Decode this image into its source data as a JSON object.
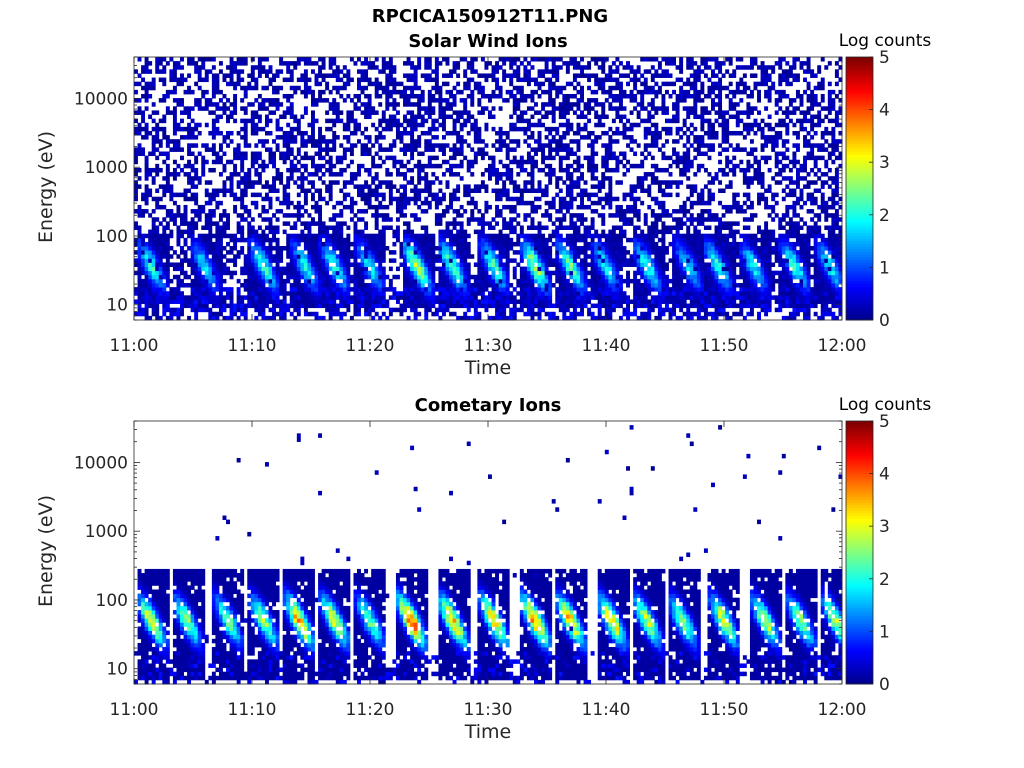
{
  "figure_title": "RPCICA150912T11.PNG",
  "colors": {
    "colormap": [
      "#00008f",
      "#0000ff",
      "#0080ff",
      "#00ffff",
      "#80ff80",
      "#ffff00",
      "#ff8000",
      "#ff0000",
      "#800000"
    ],
    "axis": "#262626"
  },
  "chart_data": [
    {
      "type": "heatmap",
      "title": "Solar Wind Ions",
      "xlabel": "Time",
      "ylabel": "Energy (eV)",
      "x_ticks": [
        "11:00",
        "11:10",
        "11:20",
        "11:30",
        "11:40",
        "11:50",
        "12:00"
      ],
      "xlim": [
        "11:00",
        "12:00"
      ],
      "y_scale": "log",
      "y_ticks": [
        10,
        100,
        1000,
        10000
      ],
      "y_tick_labels": [
        "10",
        "100",
        "1000",
        "10000"
      ],
      "ylim": [
        6,
        40000
      ],
      "colorbar": {
        "label": "Log counts",
        "range": [
          0,
          5
        ],
        "ticks": [
          "0",
          "1",
          "2",
          "3",
          "4",
          "5"
        ]
      },
      "background_level": 0.3,
      "bursts_minutes": [
        1.5,
        6,
        11,
        14.5,
        17,
        20,
        24,
        27,
        30.5,
        34,
        37,
        40,
        43.5,
        47,
        49.5,
        52.5,
        56,
        59
      ],
      "burst_peak_log_counts": [
        2.2,
        1.8,
        2.3,
        2.0,
        2.2,
        2.0,
        3.0,
        2.5,
        2.3,
        3.0,
        2.5,
        2.0,
        2.2,
        1.8,
        2.2,
        2.0,
        2.2,
        2.0
      ],
      "burst_energy_ev": [
        20,
        60
      ]
    },
    {
      "type": "heatmap",
      "title": "Cometary Ions",
      "xlabel": "Time",
      "ylabel": "Energy (eV)",
      "x_ticks": [
        "11:00",
        "11:10",
        "11:20",
        "11:30",
        "11:40",
        "11:50",
        "12:00"
      ],
      "xlim": [
        "11:00",
        "12:00"
      ],
      "y_scale": "log",
      "y_ticks": [
        10,
        100,
        1000,
        10000
      ],
      "y_tick_labels": [
        "10",
        "100",
        "1000",
        "10000"
      ],
      "ylim": [
        6,
        40000
      ],
      "colorbar": {
        "label": "Log counts",
        "range": [
          0,
          5
        ],
        "ticks": [
          "0",
          "1",
          "2",
          "3",
          "4",
          "5"
        ]
      },
      "background_level": 0.02,
      "bursts_minutes": [
        1.5,
        4.5,
        8,
        11,
        14,
        17,
        20,
        23.5,
        27,
        30.5,
        34,
        37,
        40.5,
        43.5,
        46.5,
        50,
        53.5,
        56.5,
        59.5
      ],
      "burst_peak_log_counts": [
        3.2,
        2.8,
        2.5,
        2.8,
        3.8,
        3.2,
        2.5,
        4.2,
        3.8,
        3.5,
        4.0,
        3.6,
        3.5,
        3.0,
        2.8,
        3.2,
        3.0,
        2.8,
        3.0
      ],
      "burst_energy_ev": [
        15,
        150
      ]
    }
  ]
}
